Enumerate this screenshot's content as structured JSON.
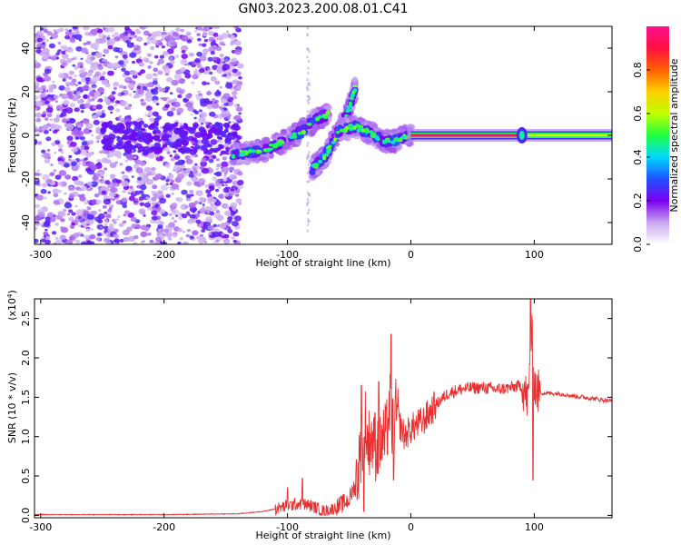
{
  "title": "GN03.2023.200.08.01.C41",
  "chart_data": [
    {
      "type": "heatmap",
      "name": "spectrogram",
      "xlabel": "Height of straight line (km)",
      "ylabel": "Frequency (Hz)",
      "xlim": [
        -305,
        163
      ],
      "ylim": [
        -50,
        50
      ],
      "xticks": [
        -300,
        -200,
        -100,
        0,
        100
      ],
      "xtick_labels": [
        "-300",
        "-200",
        "-100",
        "0",
        "100"
      ],
      "yticks": [
        40,
        20,
        0,
        -20,
        -40
      ],
      "ytick_labels": [
        "40",
        "20",
        "0",
        "-20",
        "-40"
      ],
      "colorbar": {
        "label": "Normalized spectral amplitude",
        "range": [
          0,
          1
        ],
        "ticks": [
          0.0,
          0.2,
          0.4,
          0.6,
          0.8
        ],
        "tick_labels": [
          "0.0",
          "0.2",
          "0.4",
          "0.6",
          "0.8"
        ],
        "colors": [
          "#ffffff",
          "#c8a8f0",
          "#7c00f0",
          "#2050ff",
          "#00d8ff",
          "#20ff40",
          "#c0ff00",
          "#ffd000",
          "#ff6000",
          "#ff1040",
          "#ff1090"
        ]
      },
      "regions": [
        {
          "x": [
            -305,
            -138
          ],
          "y": [
            -50,
            50
          ],
          "intensity": 0.12,
          "description": "noise"
        },
        {
          "x": [
            -145,
            0
          ],
          "y": [
            -12,
            22
          ],
          "intensity": 0.3
        },
        {
          "x": [
            0,
            163
          ],
          "y": [
            -3,
            3
          ],
          "intensity": 0.95
        }
      ],
      "tracks": [
        {
          "x": [
            -145,
            -120,
            -100,
            -85,
            -75,
            -65
          ],
          "y": [
            -9,
            -7,
            -2,
            3,
            8,
            10
          ],
          "intensity": 0.3
        },
        {
          "x": [
            -80,
            -70,
            -60,
            -50,
            -45
          ],
          "y": [
            -15,
            -10,
            0,
            12,
            22
          ],
          "intensity": 0.3
        },
        {
          "x": [
            -60,
            -45,
            -30,
            -20,
            -10,
            0
          ],
          "y": [
            2,
            4,
            0,
            -3,
            -2,
            0
          ],
          "intensity": 0.35
        },
        {
          "x": [
            0,
            50,
            90,
            163
          ],
          "y": [
            0,
            0,
            0,
            0
          ],
          "intensity": 0.95
        }
      ]
    },
    {
      "type": "line",
      "name": "snr",
      "xlabel": "Height of straight line (km)",
      "ylabel": "SNR (10 * v/v)",
      "y_multiplier": "(x10^4)",
      "xlim": [
        -305,
        163
      ],
      "ylim": [
        -0.03,
        2.75
      ],
      "xticks": [
        -300,
        -200,
        -100,
        0,
        100
      ],
      "xtick_labels": [
        "-300",
        "-200",
        "-100",
        "0",
        "100"
      ],
      "yticks": [
        0.0,
        0.5,
        1.0,
        1.5,
        2.0,
        2.5
      ],
      "ytick_labels": [
        "0.0",
        "0.5",
        "1.0",
        "1.5",
        "2.0",
        "2.5"
      ],
      "color": "#e83030",
      "series": [
        {
          "x": [
            -305,
            -200,
            -140,
            -120,
            -110,
            -100,
            -90,
            -80,
            -70,
            -60,
            -50,
            -45,
            -40,
            -37,
            -35,
            -32,
            -30,
            -25,
            -20,
            -17,
            -15,
            -12,
            -10,
            -5,
            0,
            10,
            20,
            30,
            40,
            50,
            60,
            70,
            80,
            90,
            95,
            98,
            100,
            102,
            105,
            110,
            120,
            130,
            140,
            150,
            163
          ],
          "y": [
            0.01,
            0.01,
            0.02,
            0.05,
            0.08,
            0.12,
            0.15,
            0.12,
            0.05,
            0.1,
            0.2,
            0.4,
            0.8,
            1.2,
            0.9,
            1.0,
            0.85,
            0.9,
            1.0,
            1.4,
            1.1,
            1.3,
            1.2,
            1.0,
            1.1,
            1.2,
            1.4,
            1.55,
            1.6,
            1.62,
            1.62,
            1.6,
            1.62,
            1.65,
            1.45,
            2.3,
            1.7,
            1.58,
            1.56,
            1.55,
            1.55,
            1.52,
            1.5,
            1.48,
            1.45
          ]
        }
      ],
      "spikes": [
        {
          "x": -100,
          "y": 0.35
        },
        {
          "x": -88,
          "y": 0.47
        },
        {
          "x": -40,
          "y": 1.65
        },
        {
          "x": -38,
          "y": 0.05
        },
        {
          "x": -29,
          "y": 1.3
        },
        {
          "x": -26,
          "y": 1.7
        },
        {
          "x": -16,
          "y": 2.3
        },
        {
          "x": -14,
          "y": 0.45
        },
        {
          "x": 97,
          "y": 2.75
        },
        {
          "x": 99,
          "y": 0.45
        }
      ]
    }
  ],
  "colors": {
    "track_core": "#20ff40",
    "track_edge": "#00d8ff",
    "band_center": "#ff1040",
    "band_middle": "#ffd000",
    "noise": "#7c00f0"
  }
}
